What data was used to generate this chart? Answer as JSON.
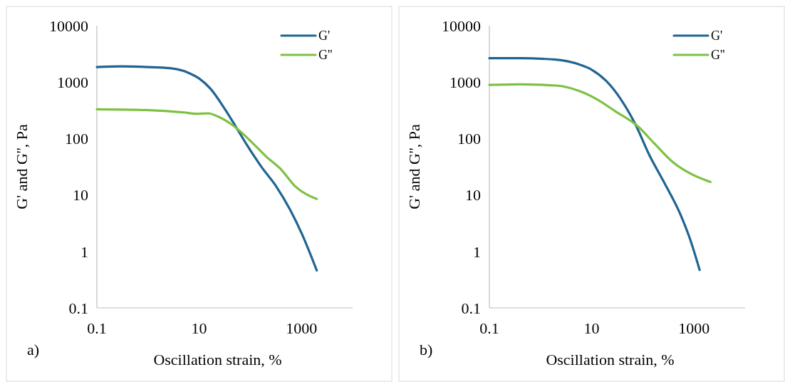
{
  "chart_data": [
    {
      "type": "line",
      "xlabel": "Oscillation strain, %",
      "ylabel": "G' and G'', Pa",
      "log": "xy",
      "grid": false,
      "legend": "top right",
      "marker": "none",
      "line_style": "solid",
      "annotations": [
        "a)"
      ],
      "xlim": [
        0.1,
        10000
      ],
      "xticks": [
        0.1,
        10,
        1000
      ],
      "ylim": [
        0.1,
        10000
      ],
      "yticks": [
        0.1,
        1,
        10,
        100,
        1000,
        10000
      ],
      "series": [
        {
          "name": "G'",
          "color": "#1f6591",
          "x": [
            0.1,
            0.306,
            1,
            2.67,
            6.3,
            10,
            16.7,
            32,
            50,
            85,
            163,
            316,
            605,
            1030,
            1990
          ],
          "values": [
            1850,
            1900,
            1850,
            1770,
            1450,
            1160,
            760,
            330,
            173,
            78,
            32,
            14.5,
            5.4,
            2,
            0.46
          ]
        },
        {
          "name": "G''",
          "color": "#7dc142",
          "x": [
            0.1,
            0.9,
            5.1,
            8.8,
            15,
            23.3,
            45,
            107,
            204,
            390,
            740,
            1990
          ],
          "values": [
            330,
            320,
            290,
            275,
            280,
            245,
            173,
            86,
            48,
            29,
            14.5,
            8.5
          ]
        }
      ]
    },
    {
      "type": "line",
      "xlabel": "Oscillation strain, %",
      "ylabel": "G' and G'', Pa",
      "log": "xy",
      "grid": false,
      "legend": "top right",
      "marker": "none",
      "line_style": "solid",
      "annotations": [
        "b)"
      ],
      "xlim": [
        0.1,
        10000
      ],
      "xticks": [
        0.1,
        10,
        1000
      ],
      "ylim": [
        0.1,
        10000
      ],
      "yticks": [
        0.1,
        1,
        10,
        100,
        1000,
        10000
      ],
      "series": [
        {
          "name": "G'",
          "color": "#1f6591",
          "x": [
            0.1,
            0.4,
            2,
            5.9,
            10,
            19,
            37,
            70,
            134,
            258,
            540,
            830,
            1290
          ],
          "values": [
            2650,
            2650,
            2500,
            2030,
            1660,
            1060,
            500,
            186,
            51,
            17,
            4.6,
            1.7,
            0.47
          ]
        },
        {
          "name": "G''",
          "color": "#7dc142",
          "x": [
            0.1,
            0.4,
            2,
            5.9,
            12.5,
            29,
            78,
            166,
            390,
            930,
            2100
          ],
          "values": [
            890,
            910,
            870,
            690,
            500,
            305,
            168,
            83,
            38,
            23,
            17
          ]
        }
      ]
    }
  ]
}
